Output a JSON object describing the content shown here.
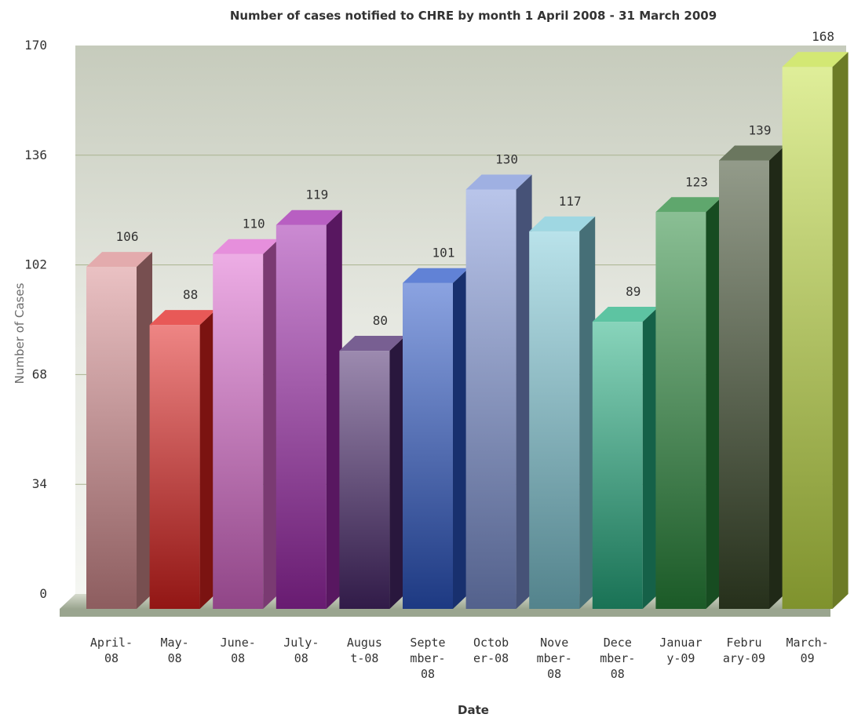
{
  "chart_data": {
    "type": "bar",
    "title": "Number of cases notified to CHRE by month 1 April 2008 - 31 March 2009",
    "xlabel": "Date",
    "ylabel": "Number of Cases",
    "ylim": [
      0,
      170
    ],
    "yticks": [
      "0",
      "34",
      "68",
      "102",
      "136",
      "170"
    ],
    "grid": true,
    "categories": [
      [
        "April-",
        "08"
      ],
      [
        "May-",
        "08"
      ],
      [
        "June-",
        "08"
      ],
      [
        "July-",
        "08"
      ],
      [
        "Augus",
        "t-08"
      ],
      [
        "Septe",
        "mber-",
        "08"
      ],
      [
        "Octob",
        "er-08"
      ],
      [
        "Nove",
        "mber-",
        "08"
      ],
      [
        "Dece",
        "mber-",
        "08"
      ],
      [
        "Januar",
        "y-09"
      ],
      [
        "Febru",
        "ary-09"
      ],
      [
        "March-",
        "09"
      ]
    ],
    "values": [
      106,
      88,
      110,
      119,
      80,
      101,
      130,
      117,
      89,
      123,
      139,
      168
    ],
    "colors": [
      "#d98f92",
      "#e0221f",
      "#de6ad0",
      "#a02aae",
      "#4b2a6e",
      "#2c58c8",
      "#7f95d8",
      "#7fcad8",
      "#27b083",
      "#2a8a3c",
      "#3a4a2a",
      "#c4e045"
    ]
  }
}
